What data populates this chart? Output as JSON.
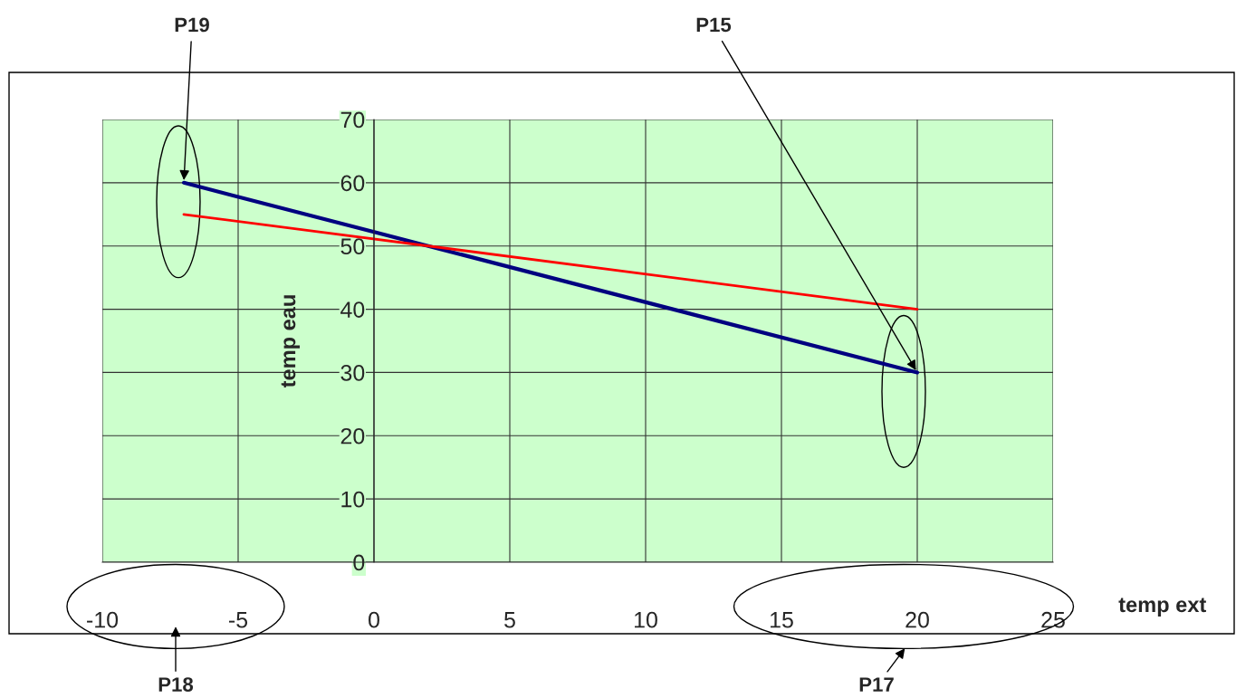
{
  "chart_data": {
    "type": "line",
    "xlabel": "temp ext",
    "ylabel": "temp eau",
    "x": [
      -7,
      20
    ],
    "series": [
      {
        "color": "#000080",
        "values": [
          60,
          30
        ]
      },
      {
        "color": "#ff0000",
        "values": [
          55,
          40
        ]
      }
    ],
    "xlim": [
      -10,
      25
    ],
    "ylim": [
      0,
      70
    ],
    "xticks": [
      -10,
      -5,
      0,
      5,
      10,
      15,
      20,
      25
    ],
    "yticks": [
      0,
      10,
      20,
      30,
      40,
      50,
      60,
      70
    ],
    "grid": true,
    "marker": "none",
    "line_style": "solid",
    "annotations": [
      {
        "text": "P19",
        "x": -7,
        "y": 60
      },
      {
        "text": "P15",
        "x": 20,
        "y": 30
      },
      "P18",
      "P17"
    ]
  }
}
